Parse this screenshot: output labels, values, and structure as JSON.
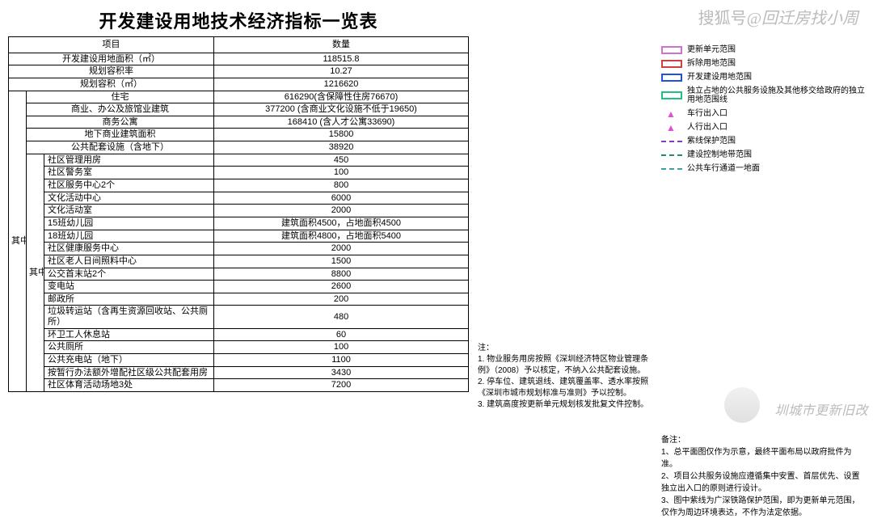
{
  "watermark": {
    "brand": "搜狐号",
    "at": "@",
    "name": "回迁房找小周"
  },
  "logoText": "圳城市更新旧改",
  "title": "开发建设用地技术经济指标一览表",
  "headers": {
    "item": "项目",
    "qty": "数量"
  },
  "top": [
    {
      "k": "开发建设用地面积（㎡）",
      "v": "118515.8"
    },
    {
      "k": "规划容积率",
      "v": "10.27"
    },
    {
      "k": "规划容积（㎡）",
      "v": "1216620"
    }
  ],
  "group1_label": "其中",
  "group1": [
    {
      "k": "住宅",
      "v": "616290(含保障性住房76670)"
    },
    {
      "k": "商业、办公及旅馆业建筑",
      "v": "377200 (含商业文化设施不低于19650)",
      "multi": true
    },
    {
      "k": "商务公寓",
      "v": "168410 (含人才公寓33690)"
    },
    {
      "k": "地下商业建筑面积",
      "v": "15800"
    },
    {
      "k": "公共配套设施（含地下）",
      "v": "38920"
    }
  ],
  "group2_label": "其中",
  "group2": [
    {
      "k": "社区管理用房",
      "v": "450"
    },
    {
      "k": "社区警务室",
      "v": "100"
    },
    {
      "k": "社区服务中心2个",
      "v": "800"
    },
    {
      "k": "文化活动中心",
      "v": "6000"
    },
    {
      "k": "文化活动室",
      "v": "2000"
    },
    {
      "k": "15班幼儿园",
      "v": "建筑面积4500，占地面积4500"
    },
    {
      "k": "18班幼儿园",
      "v": "建筑面积4800，占地面积5400"
    },
    {
      "k": "社区健康服务中心",
      "v": "2000"
    },
    {
      "k": "社区老人日间照料中心",
      "v": "1500"
    },
    {
      "k": "公交首末站2个",
      "v": "8800"
    },
    {
      "k": "变电站",
      "v": "2600"
    },
    {
      "k": "邮政所",
      "v": "200"
    },
    {
      "k": "垃圾转运站（含再生资源回收站、公共厕所）",
      "v": "480",
      "multi": true
    },
    {
      "k": "环卫工人休息站",
      "v": "60"
    },
    {
      "k": "公共厕所",
      "v": "100"
    },
    {
      "k": "公共充电站（地下）",
      "v": "1100"
    },
    {
      "k": "按暂行办法额外增配社区级公共配套用房",
      "v": "3430",
      "multi": true
    },
    {
      "k": "社区体育活动场地3处",
      "v": "7200"
    }
  ],
  "notes": {
    "lead": "注：",
    "lines": [
      "1. 物业服务用房按照《深圳经济特区物业管理条例》（2008）予以核定，不纳入公共配套设施。",
      "2. 停车位、建筑退线、建筑覆盖率、透水率按照《深圳市城市规划标准与准则》予以控制。",
      "3. 建筑高度按更新单元规划核发批复文件控制。"
    ]
  },
  "legend": [
    {
      "c": "#d070d0",
      "t": "更新单元范围",
      "style": "solid"
    },
    {
      "c": "#d04040",
      "t": "拆除用地范围",
      "style": "solid"
    },
    {
      "c": "#2050e0",
      "t": "开发建设用地范围",
      "style": "solid"
    },
    {
      "c": "#20c080",
      "t": "独立占地的公共服务设施及其他移交给政府的独立用地范围线",
      "style": "solid"
    },
    {
      "c": "#e050d0",
      "t": "车行出入口",
      "style": "tri"
    },
    {
      "c": "#e050d0",
      "t": "人行出入口",
      "style": "tri2"
    },
    {
      "c": "#8040c0",
      "t": "紫线保护范围",
      "style": "dash"
    },
    {
      "c": "#209060",
      "t": "建设控制地带范围",
      "style": "dash"
    },
    {
      "c": "#40a0a0",
      "t": "公共车行通道一地面",
      "style": "dash"
    }
  ],
  "remarks": {
    "title": "备注：",
    "lines": [
      "1、总平面图仅作为示意，最终平面布局以政府批件为准。",
      "2、项目公共服务设施应遵循集中安置、首层优先、设置独立出入口的原则进行设计。",
      "3、图中紫线为广深铁路保护范围，即为更新单元范围，仅作为周边环境表达，不作为法定依据。"
    ]
  }
}
